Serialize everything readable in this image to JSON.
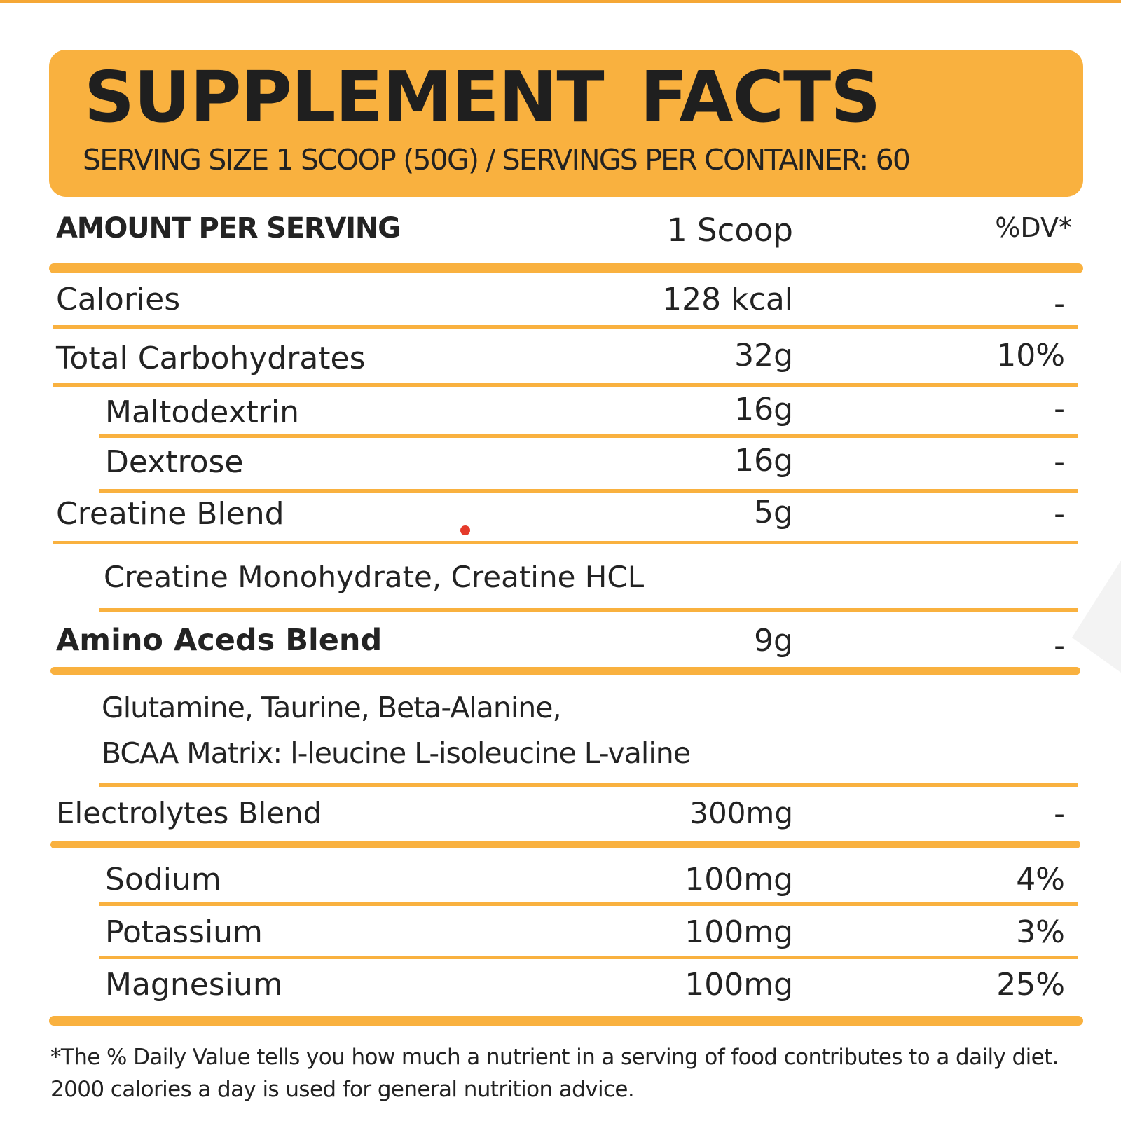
{
  "header": {
    "title": "SUPPLEMENT  FACTS",
    "subtitle": "SERVING SIZE 1 SCOOP (50G) / SERVINGS PER CONTAINER: 60"
  },
  "columns": {
    "label": "AMOUNT PER SERVING",
    "amount": "1 Scoop",
    "dv": "%DV*"
  },
  "rows": [
    {
      "label": "Calories",
      "amount": "128 kcal",
      "dv": "-"
    },
    {
      "label": "Total Carbohydrates",
      "amount": "32g",
      "dv": "10%"
    },
    {
      "label": "Maltodextrin",
      "amount": "16g",
      "dv": "-"
    },
    {
      "label": "Dextrose",
      "amount": "16g",
      "dv": "-"
    },
    {
      "label": "Creatine Blend",
      "amount": "5g",
      "dv": "-"
    },
    {
      "label": "Amino Aceds Blend",
      "amount": "9g",
      "dv": "-"
    },
    {
      "label": "Electrolytes Blend",
      "amount": "300mg",
      "dv": "-"
    },
    {
      "label": "Sodium",
      "amount": "100mg",
      "dv": "4%"
    },
    {
      "label": "Potassium",
      "amount": "100mg",
      "dv": "3%"
    },
    {
      "label": "Magnesium",
      "amount": "100mg",
      "dv": "25%"
    }
  ],
  "creatine_blend_desc": "Creatine Monohydrate, Creatine HCL",
  "amino_blend_desc": [
    "Glutamine, Taurine, Beta-Alanine,",
    "BCAA Matrix: l-leucine L-isoleucine L-valine"
  ],
  "footnote": "*The % Daily Value tells you how much a nutrient in a serving of food contributes to a daily diet. 2000 calories a day is used for general nutrition advice.",
  "colors": {
    "accent": "#f9b13f",
    "text": "#222222",
    "marker": "#e53a2b"
  }
}
